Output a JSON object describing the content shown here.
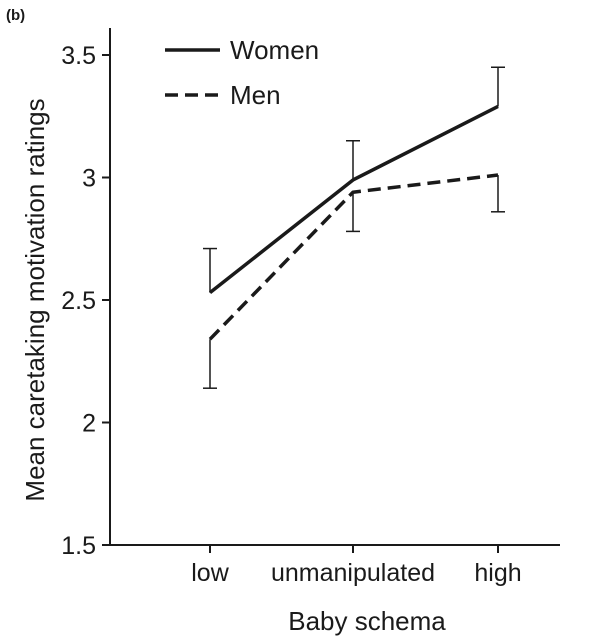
{
  "panel_label": "(b)",
  "chart_data": {
    "type": "line",
    "categories": [
      "low",
      "unmanipulated",
      "high"
    ],
    "xlabel": "Baby schema",
    "ylabel": "Mean caretaking motivation ratings",
    "ylim": [
      1.5,
      3.6
    ],
    "yticks": [
      1.5,
      2,
      2.5,
      3,
      3.5
    ],
    "ytick_labels": [
      "1.5",
      "2",
      "2.5",
      "3",
      "3.5"
    ],
    "grid": false,
    "legend_position": "top-left",
    "series": [
      {
        "name": "Women",
        "style": "solid",
        "color": "#1a1a1a",
        "values": [
          2.53,
          2.99,
          3.29
        ],
        "errors": [
          0.18,
          0.16,
          0.16
        ],
        "error_direction": "up"
      },
      {
        "name": "Men",
        "style": "dashed",
        "color": "#1a1a1a",
        "values": [
          2.34,
          2.94,
          3.01
        ],
        "errors": [
          0.2,
          0.16,
          0.15
        ],
        "error_direction": "down"
      }
    ]
  }
}
